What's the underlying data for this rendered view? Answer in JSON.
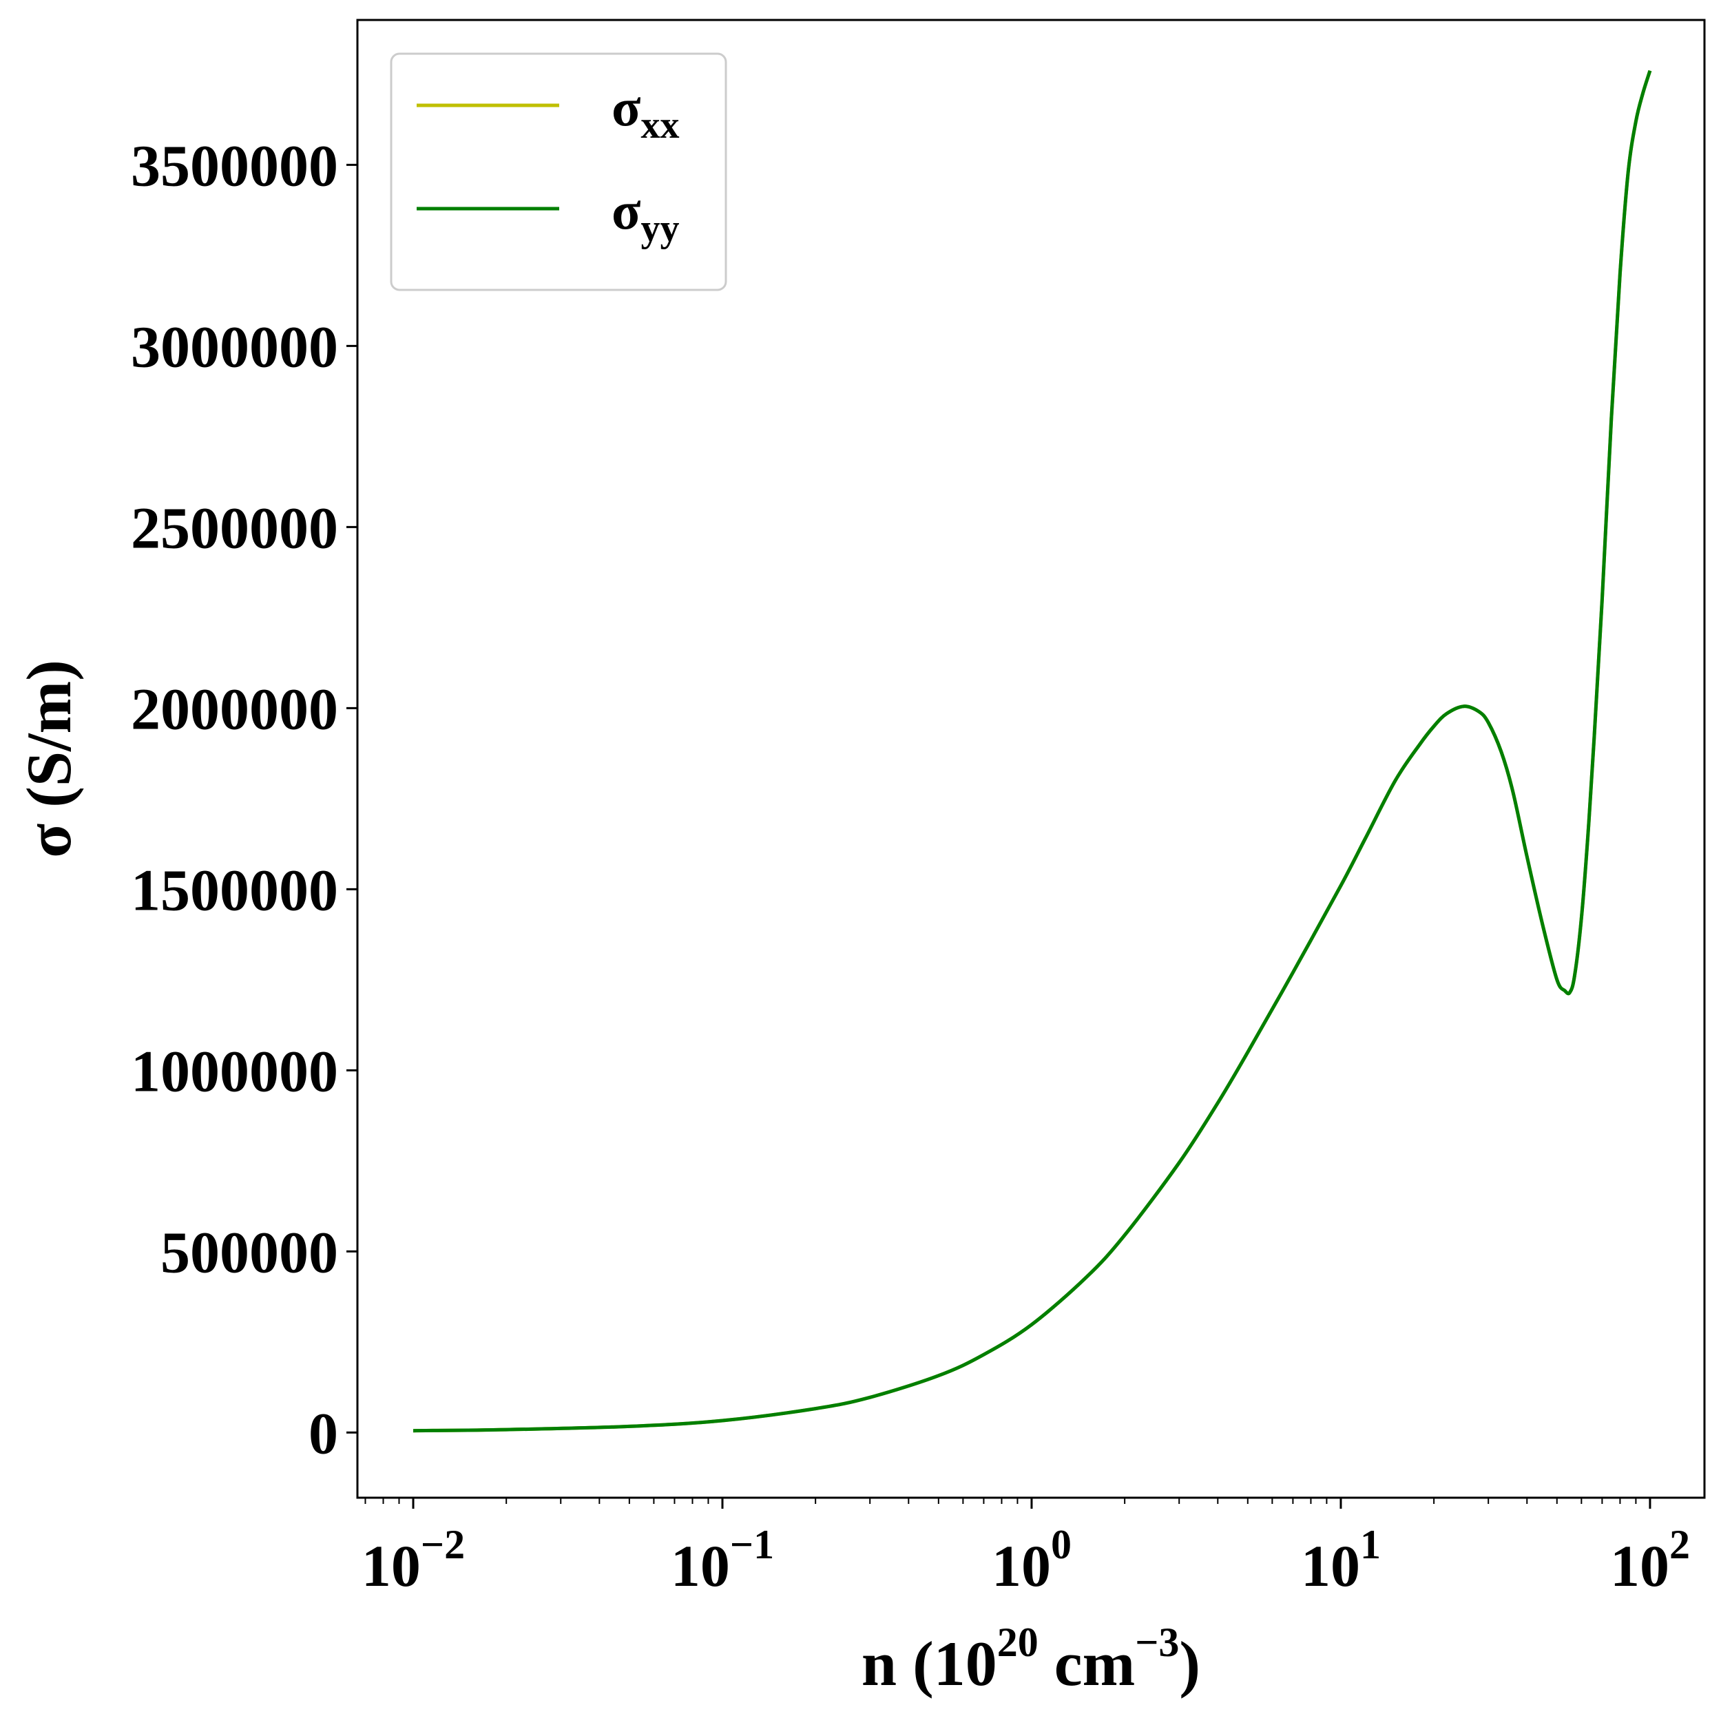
{
  "chart_data": {
    "type": "line",
    "xscale": "log",
    "xlabel": {
      "base": "n (10",
      "exp1": "20",
      "mid": " cm",
      "exp2": "−3",
      "tail": ")"
    },
    "ylabel": "σ (S/m)",
    "xlim": [
      0.0066,
      150
    ],
    "ylim": [
      -180000,
      3900000
    ],
    "x_ticks": [
      {
        "value": 0.01,
        "base": "10",
        "exp": "−2"
      },
      {
        "value": 0.1,
        "base": "10",
        "exp": "−1"
      },
      {
        "value": 1,
        "base": "10",
        "exp": "0"
      },
      {
        "value": 10,
        "base": "10",
        "exp": "1"
      },
      {
        "value": 100,
        "base": "10",
        "exp": "2"
      }
    ],
    "y_ticks": [
      {
        "value": 0,
        "label": "0"
      },
      {
        "value": 500000,
        "label": "500000"
      },
      {
        "value": 1000000,
        "label": "1000000"
      },
      {
        "value": 1500000,
        "label": "1500000"
      },
      {
        "value": 2000000,
        "label": "2000000"
      },
      {
        "value": 2500000,
        "label": "2500000"
      },
      {
        "value": 3000000,
        "label": "3000000"
      },
      {
        "value": 3500000,
        "label": "3500000"
      }
    ],
    "grid": false,
    "legend_position": "upper-left",
    "series": [
      {
        "name_base": "σ",
        "name_sub": "xx",
        "color": "#bfbf00",
        "x": [
          0.01,
          0.02,
          0.05,
          0.1,
          0.2,
          0.3,
          0.5,
          0.7,
          1,
          1.5,
          2,
          3,
          4,
          5,
          7,
          10,
          12,
          15,
          18,
          20,
          22,
          25,
          28,
          30,
          33,
          36,
          40,
          45,
          50,
          53,
          55,
          57,
          60,
          63,
          66,
          70,
          75,
          80,
          85,
          90,
          95,
          100
        ],
        "y": [
          5000,
          8000,
          17000,
          33000,
          66000,
          97000,
          157000,
          215000,
          298000,
          428000,
          545000,
          745000,
          910000,
          1050000,
          1270000,
          1510000,
          1640000,
          1800000,
          1900000,
          1950000,
          1985000,
          2005000,
          1990000,
          1960000,
          1880000,
          1770000,
          1590000,
          1400000,
          1250000,
          1220000,
          1215000,
          1260000,
          1420000,
          1650000,
          1920000,
          2300000,
          2800000,
          3200000,
          3480000,
          3620000,
          3700000,
          3760000
        ]
      },
      {
        "name_base": "σ",
        "name_sub": "yy",
        "color": "#007f00",
        "x": [
          0.01,
          0.02,
          0.05,
          0.1,
          0.2,
          0.3,
          0.5,
          0.7,
          1,
          1.5,
          2,
          3,
          4,
          5,
          7,
          10,
          12,
          15,
          18,
          20,
          22,
          25,
          28,
          30,
          33,
          36,
          40,
          45,
          50,
          53,
          55,
          57,
          60,
          63,
          66,
          70,
          75,
          80,
          85,
          90,
          95,
          100
        ],
        "y": [
          5000,
          8000,
          17000,
          33000,
          66000,
          97000,
          157000,
          215000,
          298000,
          428000,
          545000,
          745000,
          910000,
          1050000,
          1270000,
          1510000,
          1640000,
          1800000,
          1900000,
          1950000,
          1985000,
          2005000,
          1990000,
          1960000,
          1880000,
          1770000,
          1590000,
          1400000,
          1250000,
          1220000,
          1215000,
          1260000,
          1420000,
          1650000,
          1920000,
          2300000,
          2800000,
          3200000,
          3480000,
          3620000,
          3700000,
          3760000
        ]
      }
    ]
  }
}
